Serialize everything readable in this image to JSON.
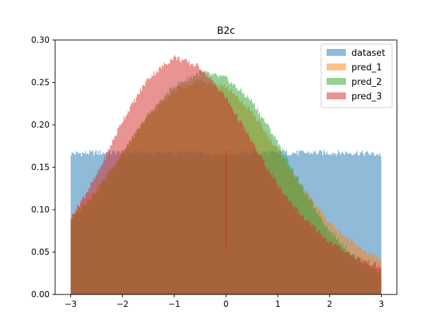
{
  "chart_data": {
    "type": "histogram",
    "title": "B2c",
    "xlabel": "",
    "ylabel": "",
    "xlim": [
      -3.3,
      3.3
    ],
    "ylim": [
      0,
      0.3
    ],
    "x_ticks": [
      -3,
      -2,
      -1,
      0,
      1,
      2,
      3
    ],
    "x_tick_labels": [
      "−3",
      "−2",
      "−1",
      "0",
      "1",
      "2",
      "3"
    ],
    "y_ticks": [
      0.0,
      0.05,
      0.1,
      0.15,
      0.2,
      0.25,
      0.3
    ],
    "y_tick_labels": [
      "0.00",
      "0.05",
      "0.10",
      "0.15",
      "0.20",
      "0.25",
      "0.30"
    ],
    "grid": false,
    "legend_position": "top-right",
    "bin_range": [
      -3,
      3
    ],
    "series": [
      {
        "name": "dataset",
        "color": "#1f77b4",
        "alpha": 0.5,
        "x": [
          -3.0,
          -2.5,
          -2.0,
          -1.5,
          -1.0,
          -0.5,
          0.0,
          0.5,
          1.0,
          1.5,
          2.0,
          2.5,
          3.0
        ],
        "values": [
          0.166,
          0.167,
          0.167,
          0.167,
          0.167,
          0.167,
          0.166,
          0.167,
          0.167,
          0.167,
          0.167,
          0.167,
          0.165
        ]
      },
      {
        "name": "pred_1",
        "color": "#ff7f0e",
        "alpha": 0.5,
        "x": [
          -3.0,
          -2.5,
          -2.0,
          -1.5,
          -1.0,
          -0.5,
          0.0,
          0.5,
          1.0,
          1.5,
          2.0,
          2.5,
          3.0
        ],
        "values": [
          0.092,
          0.125,
          0.168,
          0.21,
          0.24,
          0.253,
          0.245,
          0.215,
          0.17,
          0.123,
          0.085,
          0.058,
          0.04
        ]
      },
      {
        "name": "pred_2",
        "color": "#2ca02c",
        "alpha": 0.5,
        "x": [
          -3.0,
          -2.5,
          -2.0,
          -1.5,
          -1.0,
          -0.5,
          0.0,
          0.5,
          1.0,
          1.5,
          2.0,
          2.5,
          3.0
        ],
        "values": [
          0.088,
          0.122,
          0.166,
          0.212,
          0.246,
          0.262,
          0.255,
          0.228,
          0.18,
          0.123,
          0.075,
          0.043,
          0.025
        ]
      },
      {
        "name": "pred_3",
        "color": "#d62728",
        "alpha": 0.5,
        "x": [
          -3.0,
          -2.5,
          -2.0,
          -1.5,
          -1.0,
          -0.5,
          0.0,
          0.5,
          1.0,
          1.5,
          2.0,
          2.5,
          3.0
        ],
        "values": [
          0.09,
          0.14,
          0.205,
          0.255,
          0.28,
          0.268,
          0.232,
          0.18,
          0.128,
          0.09,
          0.062,
          0.044,
          0.032
        ]
      }
    ],
    "annotations": [
      {
        "type": "spike",
        "x": 0.0,
        "values": [
          0.055,
          0.17
        ]
      }
    ]
  }
}
